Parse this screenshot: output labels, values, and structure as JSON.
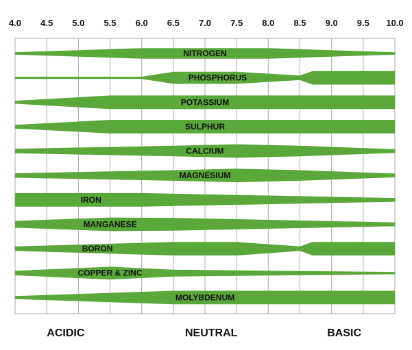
{
  "chart_data": {
    "type": "band",
    "x_ticks": [
      "4.0",
      "4.5",
      "5.0",
      "5.5",
      "6.0",
      "6.5",
      "7.0",
      "7.5",
      "8.0",
      "8.5",
      "9.0",
      "9.5",
      "10.0"
    ],
    "xlim": [
      4.0,
      10.0
    ],
    "grid": true,
    "band_color": "#5aa83a",
    "grid_color": "#aaaaaa",
    "zones": [
      "ACIDIC",
      "NEUTRAL",
      "BASIC"
    ],
    "nutrients": [
      {
        "label": "NITROGEN",
        "profile": [
          [
            4.0,
            0.15
          ],
          [
            6.0,
            0.7
          ],
          [
            8.0,
            0.7
          ],
          [
            10.0,
            0.15
          ]
        ]
      },
      {
        "label": "PHOSPHORUS",
        "profile": [
          [
            4.0,
            0.15
          ],
          [
            6.0,
            0.15
          ],
          [
            6.5,
            0.8
          ],
          [
            7.5,
            0.8
          ],
          [
            8.5,
            0.3
          ],
          [
            8.7,
            0.9
          ],
          [
            10.0,
            0.9
          ]
        ]
      },
      {
        "label": "POTASSIUM",
        "profile": [
          [
            4.0,
            0.2
          ],
          [
            5.5,
            0.9
          ],
          [
            10.0,
            0.9
          ]
        ]
      },
      {
        "label": "SULPHUR",
        "profile": [
          [
            4.0,
            0.25
          ],
          [
            5.5,
            0.9
          ],
          [
            10.0,
            0.9
          ]
        ]
      },
      {
        "label": "CALCIUM",
        "profile": [
          [
            4.0,
            0.3
          ],
          [
            6.5,
            0.7
          ],
          [
            7.5,
            0.9
          ],
          [
            8.5,
            0.7
          ],
          [
            10.0,
            0.25
          ]
        ]
      },
      {
        "label": "MAGNESIUM",
        "profile": [
          [
            4.0,
            0.3
          ],
          [
            6.5,
            0.7
          ],
          [
            7.5,
            0.9
          ],
          [
            8.5,
            0.7
          ],
          [
            10.0,
            0.25
          ]
        ]
      },
      {
        "label": "IRON",
        "profile": [
          [
            4.0,
            0.9
          ],
          [
            6.0,
            0.9
          ],
          [
            10.0,
            0.25
          ]
        ]
      },
      {
        "label": "MANGANESE",
        "profile": [
          [
            4.0,
            0.45
          ],
          [
            5.5,
            0.9
          ],
          [
            6.5,
            0.85
          ],
          [
            10.0,
            0.25
          ]
        ]
      },
      {
        "label": "BORON",
        "profile": [
          [
            4.0,
            0.3
          ],
          [
            6.5,
            0.9
          ],
          [
            7.5,
            0.9
          ],
          [
            8.5,
            0.3
          ],
          [
            8.7,
            0.9
          ],
          [
            10.0,
            0.9
          ]
        ]
      },
      {
        "label": "COPPER & ZINC",
        "profile": [
          [
            4.0,
            0.3
          ],
          [
            5.5,
            0.85
          ],
          [
            6.5,
            0.45
          ],
          [
            10.0,
            0.15
          ]
        ]
      },
      {
        "label": "MOLYBDENUM",
        "profile": [
          [
            4.0,
            0.2
          ],
          [
            6.5,
            0.9
          ],
          [
            10.0,
            0.9
          ]
        ]
      }
    ]
  }
}
